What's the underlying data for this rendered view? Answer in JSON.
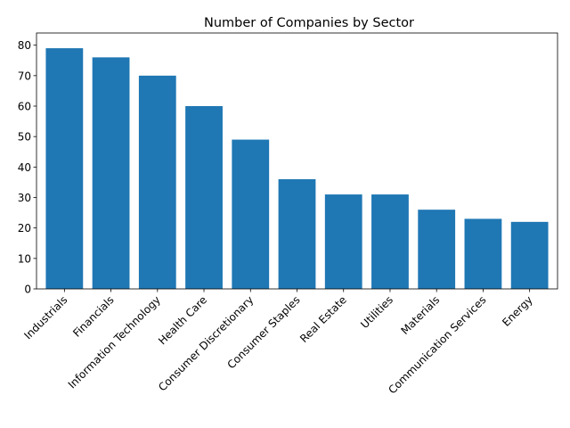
{
  "chart_data": {
    "type": "bar",
    "title": "Number of Companies by Sector",
    "xlabel": "",
    "ylabel": "",
    "categories": [
      "Industrials",
      "Financials",
      "Information Technology",
      "Health Care",
      "Consumer Discretionary",
      "Consumer Staples",
      "Real Estate",
      "Utilities",
      "Materials",
      "Communication Services",
      "Energy"
    ],
    "values": [
      79,
      76,
      70,
      60,
      49,
      36,
      31,
      31,
      26,
      23,
      22
    ],
    "ylim": [
      0,
      84
    ],
    "yticks": [
      0,
      10,
      20,
      30,
      40,
      50,
      60,
      70,
      80
    ],
    "bar_color": "#1f77b4",
    "grid": false,
    "legend": false
  }
}
